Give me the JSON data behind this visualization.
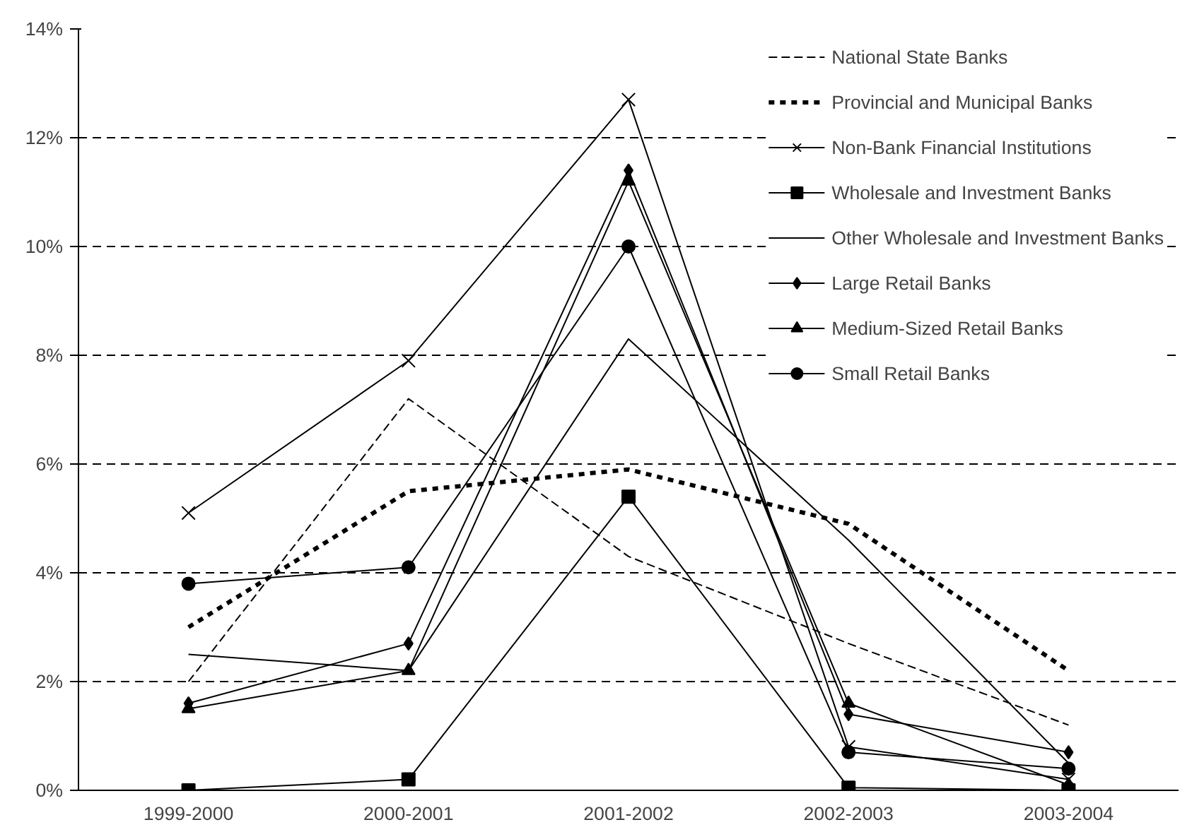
{
  "chart_data": {
    "type": "line",
    "categories": [
      "1999-2000",
      "2000-2001",
      "2001-2002",
      "2002-2003",
      "2003-2004"
    ],
    "series": [
      {
        "name": "National State Banks",
        "color": "#000000",
        "line_style": "dashed",
        "marker": "none",
        "values": [
          2.0,
          7.2,
          4.3,
          2.7,
          1.2
        ]
      },
      {
        "name": "Provincial and Municipal Banks",
        "color": "#000000",
        "line_style": "dotted",
        "marker": "none",
        "values": [
          3.0,
          5.5,
          5.9,
          4.9,
          2.2
        ]
      },
      {
        "name": "Non-Bank Financial Institutions",
        "color": "#000000",
        "line_style": "solid",
        "marker": "cross",
        "values": [
          5.1,
          7.9,
          12.7,
          0.8,
          0.2
        ]
      },
      {
        "name": "Wholesale and Investment Banks",
        "color": "#000000",
        "line_style": "solid",
        "marker": "square",
        "values": [
          0.0,
          0.2,
          5.4,
          0.05,
          0.0
        ]
      },
      {
        "name": "Other Wholesale and Investment Banks",
        "color": "#000000",
        "line_style": "solid",
        "marker": "none",
        "values": [
          2.5,
          2.2,
          8.3,
          4.6,
          0.5
        ]
      },
      {
        "name": "Large Retail Banks",
        "color": "#000000",
        "line_style": "solid",
        "marker": "diamond",
        "values": [
          1.6,
          2.7,
          11.4,
          1.4,
          0.7
        ]
      },
      {
        "name": "Medium-Sized Retail Banks",
        "color": "#000000",
        "line_style": "solid",
        "marker": "triangle",
        "values": [
          1.5,
          2.2,
          11.2,
          1.6,
          0.1
        ]
      },
      {
        "name": "Small Retail Banks",
        "color": "#000000",
        "line_style": "solid",
        "marker": "circle",
        "values": [
          3.8,
          4.1,
          10.0,
          0.7,
          0.4
        ]
      }
    ],
    "ylim": [
      0,
      14
    ],
    "yticks": [
      {
        "value": 0,
        "label": "0%"
      },
      {
        "value": 2,
        "label": "2%"
      },
      {
        "value": 4,
        "label": "4%"
      },
      {
        "value": 6,
        "label": "6%"
      },
      {
        "value": 8,
        "label": "8%"
      },
      {
        "value": 10,
        "label": "10%"
      },
      {
        "value": 12,
        "label": "12%"
      },
      {
        "value": 14,
        "label": "14%"
      }
    ],
    "grid": "y",
    "legend": "top right"
  }
}
